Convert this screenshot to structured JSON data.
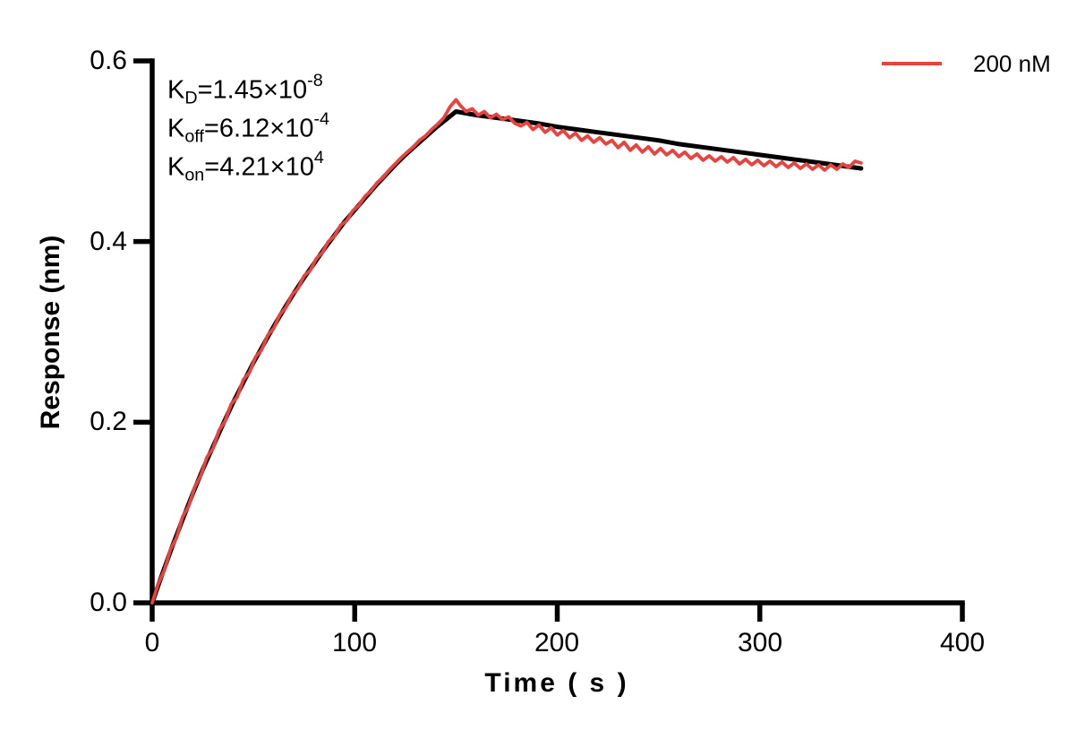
{
  "chart_data": {
    "type": "line",
    "title": "",
    "xlabel": "Time ( s )",
    "ylabel": "Response (nm)",
    "xlim": [
      0,
      400
    ],
    "ylim": [
      0,
      0.6
    ],
    "xticks": [
      0,
      100,
      200,
      300,
      400
    ],
    "xtick_labels": [
      "0",
      "100",
      "200",
      "300",
      "400"
    ],
    "yticks": [
      0,
      0.2,
      0.4,
      0.6
    ],
    "ytick_labels": [
      "0.0",
      "0.2",
      "0.4",
      "0.6"
    ],
    "grid": false,
    "axis_color": "#000000",
    "legend_position": "top-right",
    "legend": {
      "label": "200 nM",
      "color": "#e8433e"
    },
    "kinetics_annotations": [
      {
        "name": "K",
        "sub": "D",
        "val": "=1.45×10",
        "exp": "-8"
      },
      {
        "name": "K",
        "sub": "off",
        "val": "=6.12×10",
        "exp": "-4"
      },
      {
        "name": "K",
        "sub": "on",
        "val": "=4.21×10",
        "exp": "4"
      }
    ],
    "series": [
      {
        "name": "fit",
        "role": "fitted-curve",
        "color": "#000000",
        "stroke_width": 5,
        "points": [
          [
            0,
            0
          ],
          [
            5,
            0.032
          ],
          [
            10,
            0.063
          ],
          [
            15,
            0.092
          ],
          [
            20,
            0.121
          ],
          [
            25,
            0.148
          ],
          [
            30,
            0.173
          ],
          [
            35,
            0.198
          ],
          [
            40,
            0.222
          ],
          [
            45,
            0.244
          ],
          [
            50,
            0.266
          ],
          [
            55,
            0.286
          ],
          [
            60,
            0.306
          ],
          [
            65,
            0.325
          ],
          [
            70,
            0.343
          ],
          [
            75,
            0.36
          ],
          [
            80,
            0.376
          ],
          [
            85,
            0.392
          ],
          [
            90,
            0.407
          ],
          [
            95,
            0.422
          ],
          [
            100,
            0.435
          ],
          [
            105,
            0.448
          ],
          [
            110,
            0.461
          ],
          [
            115,
            0.473
          ],
          [
            120,
            0.485
          ],
          [
            125,
            0.496
          ],
          [
            130,
            0.506
          ],
          [
            135,
            0.516
          ],
          [
            140,
            0.526
          ],
          [
            145,
            0.535
          ],
          [
            150,
            0.544
          ],
          [
            160,
            0.54
          ],
          [
            170,
            0.537
          ],
          [
            180,
            0.534
          ],
          [
            190,
            0.531
          ],
          [
            200,
            0.527
          ],
          [
            210,
            0.524
          ],
          [
            220,
            0.521
          ],
          [
            230,
            0.518
          ],
          [
            240,
            0.515
          ],
          [
            250,
            0.512
          ],
          [
            260,
            0.508
          ],
          [
            270,
            0.505
          ],
          [
            280,
            0.502
          ],
          [
            290,
            0.499
          ],
          [
            300,
            0.496
          ],
          [
            310,
            0.493
          ],
          [
            320,
            0.49
          ],
          [
            330,
            0.487
          ],
          [
            340,
            0.484
          ],
          [
            350,
            0.481
          ]
        ]
      },
      {
        "name": "200 nM",
        "role": "measured-trace",
        "color": "#e8433e",
        "stroke_width": 3.8,
        "points": [
          [
            0,
            0.0
          ],
          [
            3,
            0.021
          ],
          [
            6,
            0.036
          ],
          [
            9,
            0.059
          ],
          [
            12,
            0.072
          ],
          [
            15,
            0.095
          ],
          [
            18,
            0.107
          ],
          [
            21,
            0.128
          ],
          [
            24,
            0.141
          ],
          [
            27,
            0.161
          ],
          [
            30,
            0.171
          ],
          [
            33,
            0.191
          ],
          [
            36,
            0.201
          ],
          [
            39,
            0.22
          ],
          [
            42,
            0.228
          ],
          [
            45,
            0.247
          ],
          [
            48,
            0.255
          ],
          [
            51,
            0.272
          ],
          [
            54,
            0.28
          ],
          [
            57,
            0.296
          ],
          [
            60,
            0.304
          ],
          [
            63,
            0.319
          ],
          [
            66,
            0.327
          ],
          [
            69,
            0.341
          ],
          [
            72,
            0.348
          ],
          [
            75,
            0.362
          ],
          [
            78,
            0.368
          ],
          [
            81,
            0.381
          ],
          [
            84,
            0.388
          ],
          [
            87,
            0.4
          ],
          [
            90,
            0.406
          ],
          [
            93,
            0.418
          ],
          [
            96,
            0.423
          ],
          [
            99,
            0.434
          ],
          [
            102,
            0.44
          ],
          [
            105,
            0.45
          ],
          [
            108,
            0.456
          ],
          [
            111,
            0.465
          ],
          [
            114,
            0.471
          ],
          [
            117,
            0.479
          ],
          [
            120,
            0.486
          ],
          [
            123,
            0.493
          ],
          [
            126,
            0.499
          ],
          [
            129,
            0.505
          ],
          [
            132,
            0.512
          ],
          [
            135,
            0.517
          ],
          [
            138,
            0.524
          ],
          [
            141,
            0.53
          ],
          [
            144,
            0.537
          ],
          [
            147,
            0.549
          ],
          [
            150,
            0.557
          ],
          [
            152,
            0.551
          ],
          [
            155,
            0.544
          ],
          [
            158,
            0.547
          ],
          [
            161,
            0.54
          ],
          [
            164,
            0.544
          ],
          [
            167,
            0.537
          ],
          [
            170,
            0.541
          ],
          [
            173,
            0.535
          ],
          [
            176,
            0.538
          ],
          [
            179,
            0.531
          ],
          [
            182,
            0.528
          ],
          [
            185,
            0.532
          ],
          [
            188,
            0.524
          ],
          [
            191,
            0.529
          ],
          [
            194,
            0.521
          ],
          [
            197,
            0.526
          ],
          [
            200,
            0.518
          ],
          [
            203,
            0.523
          ],
          [
            206,
            0.515
          ],
          [
            209,
            0.52
          ],
          [
            212,
            0.512
          ],
          [
            215,
            0.517
          ],
          [
            218,
            0.51
          ],
          [
            221,
            0.515
          ],
          [
            224,
            0.508
          ],
          [
            227,
            0.512
          ],
          [
            230,
            0.504
          ],
          [
            233,
            0.51
          ],
          [
            236,
            0.501
          ],
          [
            239,
            0.507
          ],
          [
            242,
            0.499
          ],
          [
            245,
            0.505
          ],
          [
            248,
            0.497
          ],
          [
            251,
            0.503
          ],
          [
            254,
            0.496
          ],
          [
            257,
            0.501
          ],
          [
            260,
            0.494
          ],
          [
            263,
            0.499
          ],
          [
            266,
            0.492
          ],
          [
            269,
            0.497
          ],
          [
            272,
            0.49
          ],
          [
            275,
            0.495
          ],
          [
            278,
            0.489
          ],
          [
            281,
            0.494
          ],
          [
            284,
            0.488
          ],
          [
            287,
            0.493
          ],
          [
            290,
            0.486
          ],
          [
            293,
            0.491
          ],
          [
            296,
            0.485
          ],
          [
            299,
            0.49
          ],
          [
            302,
            0.484
          ],
          [
            305,
            0.489
          ],
          [
            308,
            0.483
          ],
          [
            311,
            0.488
          ],
          [
            314,
            0.482
          ],
          [
            317,
            0.487
          ],
          [
            320,
            0.481
          ],
          [
            323,
            0.486
          ],
          [
            326,
            0.48
          ],
          [
            329,
            0.485
          ],
          [
            332,
            0.479
          ],
          [
            335,
            0.485
          ],
          [
            338,
            0.48
          ],
          [
            341,
            0.486
          ],
          [
            344,
            0.482
          ],
          [
            347,
            0.489
          ],
          [
            350,
            0.487
          ]
        ]
      }
    ]
  }
}
